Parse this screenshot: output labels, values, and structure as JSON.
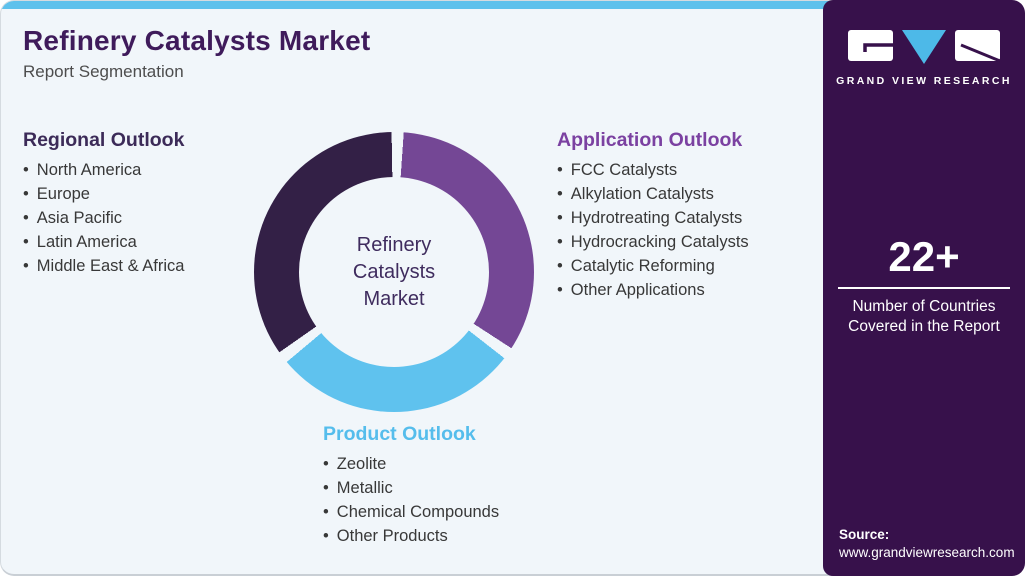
{
  "header": {
    "title": "Refinery Catalysts Market",
    "subtitle": "Report Segmentation"
  },
  "sections": {
    "regional": {
      "heading": "Regional Outlook",
      "items": [
        "North America",
        "Europe",
        "Asia Pacific",
        "Latin America",
        "Middle East & Africa"
      ]
    },
    "application": {
      "heading": "Application Outlook",
      "items": [
        "FCC Catalysts",
        "Alkylation Catalysts",
        "Hydrotreating Catalysts",
        "Hydrocracking Catalysts",
        "Catalytic Reforming",
        "Other Applications"
      ]
    },
    "product": {
      "heading": "Product Outlook",
      "items": [
        "Zeolite",
        "Metallic",
        "Chemical Compounds",
        "Other Products"
      ]
    }
  },
  "donut": {
    "center_label": "Refinery Catalysts Market"
  },
  "sidebar": {
    "brand": "GRAND VIEW RESEARCH",
    "stat": {
      "value": "22+",
      "label": "Number of Countries Covered in the Report"
    },
    "source": {
      "label": "Source:",
      "url": "www.grandviewresearch.com"
    }
  },
  "colors": {
    "card-bg": "#f1f6fa",
    "strip": "#5ec1ec",
    "panel": "#37114b",
    "title": "#3f1b5b",
    "subtitle": "#4d4d4d",
    "text": "#383838",
    "heading-regional": "#3c2b58",
    "heading-application": "#7b41a1",
    "heading-product": "#55bdec",
    "seg-regional": "#332046",
    "seg-application": "#744795",
    "seg-product": "#5fc2ee",
    "center-text": "#3f2c5e",
    "logo-blue": "#4db9e8"
  },
  "chart_data": {
    "type": "pie",
    "title": "Refinery Catalysts Market — Report Segmentation",
    "categories": [
      "Regional Outlook",
      "Application Outlook",
      "Product Outlook"
    ],
    "values": [
      34,
      33,
      28
    ],
    "values_note": "approximate arc percentages; donut is a segmentation diagram, not value-encoded",
    "colors": [
      "#332046",
      "#744795",
      "#5fc2ee"
    ],
    "center_label": "Refinery Catalysts Market",
    "legend_position": "around-chart",
    "donut_hole_ratio": 0.68
  }
}
